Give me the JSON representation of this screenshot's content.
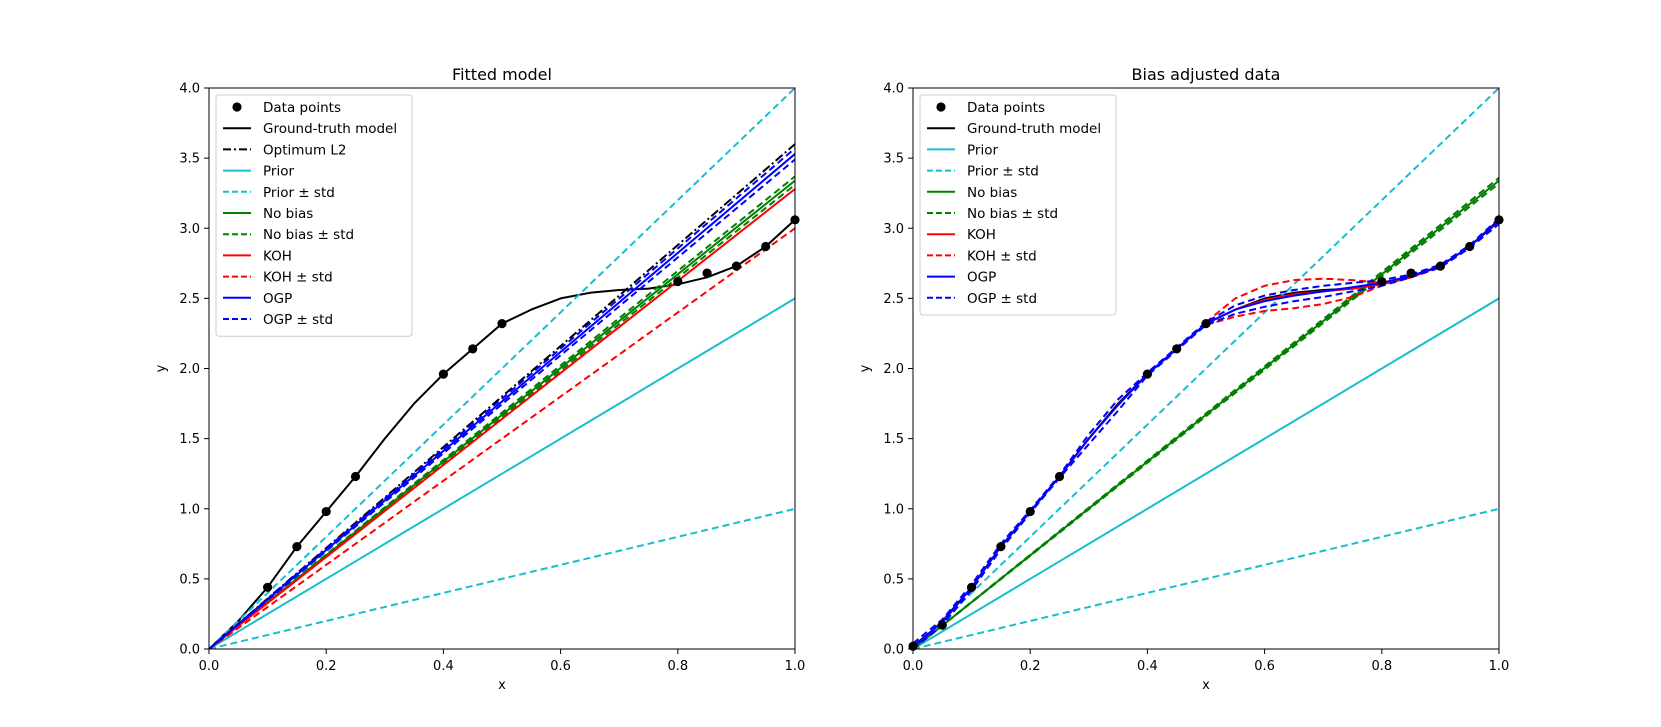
{
  "chart_data": [
    {
      "type": "line",
      "title": "Fitted model",
      "xlabel": "x",
      "ylabel": "y",
      "xlim": [
        0.0,
        1.0
      ],
      "ylim": [
        0.0,
        4.0
      ],
      "xticks": [
        "0.0",
        "0.2",
        "0.4",
        "0.6",
        "0.8",
        "1.0"
      ],
      "yticks": [
        "0.0",
        "0.5",
        "1.0",
        "1.5",
        "2.0",
        "2.5",
        "3.0",
        "3.5",
        "4.0"
      ],
      "legend_position": "top-left",
      "series": [
        {
          "name": "Data points",
          "kind": "scatter",
          "color": "#000000",
          "x": [
            0.1,
            0.15,
            0.2,
            0.25,
            0.4,
            0.45,
            0.5,
            0.8,
            0.85,
            0.9,
            0.95,
            1.0
          ],
          "y": [
            0.44,
            0.73,
            0.98,
            1.23,
            1.96,
            2.14,
            2.32,
            2.62,
            2.68,
            2.73,
            2.87,
            3.06
          ]
        },
        {
          "name": "Ground-truth model",
          "kind": "line",
          "dash": "solid",
          "color": "#000000",
          "x": [
            0,
            0.05,
            0.1,
            0.15,
            0.2,
            0.25,
            0.3,
            0.35,
            0.4,
            0.45,
            0.5,
            0.55,
            0.6,
            0.65,
            0.7,
            0.75,
            0.8,
            0.85,
            0.9,
            0.95,
            1.0
          ],
          "y": [
            0,
            0.2,
            0.44,
            0.73,
            0.98,
            1.23,
            1.5,
            1.75,
            1.96,
            2.14,
            2.32,
            2.42,
            2.5,
            2.54,
            2.56,
            2.57,
            2.6,
            2.65,
            2.73,
            2.87,
            3.06
          ]
        },
        {
          "name": "Optimum L2",
          "kind": "line",
          "dash": "dashdot",
          "color": "#000000",
          "x": [
            0,
            1
          ],
          "y": [
            0,
            3.6
          ]
        },
        {
          "name": "Prior",
          "kind": "line",
          "dash": "solid",
          "color": "#17becf",
          "x": [
            0,
            1
          ],
          "y": [
            0,
            2.5
          ]
        },
        {
          "name": "Prior ± std",
          "kind": "line",
          "dash": "dashed",
          "color": "#17becf",
          "x": [
            0,
            1
          ],
          "y": [
            0,
            4.0
          ]
        },
        {
          "name": "",
          "kind": "line",
          "dash": "dashed",
          "color": "#17becf",
          "x": [
            0,
            1
          ],
          "y": [
            0,
            1.0
          ]
        },
        {
          "name": "No bias",
          "kind": "line",
          "dash": "solid",
          "color": "#008000",
          "x": [
            0,
            1
          ],
          "y": [
            0,
            3.34
          ]
        },
        {
          "name": "No bias ± std",
          "kind": "line",
          "dash": "dashed",
          "color": "#008000",
          "x": [
            0,
            1
          ],
          "y": [
            0,
            3.37
          ]
        },
        {
          "name": "",
          "kind": "line",
          "dash": "dashed",
          "color": "#008000",
          "x": [
            0,
            1
          ],
          "y": [
            0,
            3.31
          ]
        },
        {
          "name": "KOH",
          "kind": "line",
          "dash": "solid",
          "color": "#ff0000",
          "x": [
            0,
            1
          ],
          "y": [
            0,
            3.28
          ]
        },
        {
          "name": "KOH ± std",
          "kind": "line",
          "dash": "dashed",
          "color": "#ff0000",
          "x": [
            0,
            1
          ],
          "y": [
            0,
            3.0
          ]
        },
        {
          "name": "OGP",
          "kind": "line",
          "dash": "solid",
          "color": "#0000ff",
          "x": [
            0,
            1
          ],
          "y": [
            0,
            3.53
          ]
        },
        {
          "name": "OGP ± std",
          "kind": "line",
          "dash": "dashed",
          "color": "#0000ff",
          "x": [
            0,
            1
          ],
          "y": [
            0,
            3.57
          ]
        },
        {
          "name": "",
          "kind": "line",
          "dash": "dashed",
          "color": "#0000ff",
          "x": [
            0,
            1
          ],
          "y": [
            0,
            3.49
          ]
        }
      ]
    },
    {
      "type": "line",
      "title": "Bias adjusted data",
      "xlabel": "x",
      "ylabel": "y",
      "xlim": [
        0.0,
        1.0
      ],
      "ylim": [
        0.0,
        4.0
      ],
      "xticks": [
        "0.0",
        "0.2",
        "0.4",
        "0.6",
        "0.8",
        "1.0"
      ],
      "yticks": [
        "0.0",
        "0.5",
        "1.0",
        "1.5",
        "2.0",
        "2.5",
        "3.0",
        "3.5",
        "4.0"
      ],
      "legend_position": "top-left",
      "series": [
        {
          "name": "Data points",
          "kind": "scatter",
          "color": "#000000",
          "x": [
            0.0,
            0.05,
            0.1,
            0.15,
            0.2,
            0.25,
            0.4,
            0.45,
            0.5,
            0.8,
            0.85,
            0.9,
            0.95,
            1.0
          ],
          "y": [
            0.02,
            0.17,
            0.44,
            0.73,
            0.98,
            1.23,
            1.96,
            2.14,
            2.32,
            2.62,
            2.68,
            2.73,
            2.87,
            3.06
          ]
        },
        {
          "name": "Ground-truth model",
          "kind": "line",
          "dash": "solid",
          "color": "#000000",
          "x": [
            0,
            0.05,
            0.1,
            0.15,
            0.2,
            0.25,
            0.3,
            0.35,
            0.4,
            0.45,
            0.5,
            0.55,
            0.6,
            0.65,
            0.7,
            0.75,
            0.8,
            0.85,
            0.9,
            0.95,
            1.0
          ],
          "y": [
            0,
            0.2,
            0.44,
            0.73,
            0.98,
            1.23,
            1.5,
            1.75,
            1.96,
            2.14,
            2.32,
            2.42,
            2.5,
            2.54,
            2.56,
            2.57,
            2.6,
            2.65,
            2.73,
            2.87,
            3.06
          ]
        },
        {
          "name": "Prior",
          "kind": "line",
          "dash": "solid",
          "color": "#17becf",
          "x": [
            0,
            1
          ],
          "y": [
            0,
            2.5
          ]
        },
        {
          "name": "Prior ± std",
          "kind": "line",
          "dash": "dashed",
          "color": "#17becf",
          "x": [
            0,
            1
          ],
          "y": [
            0,
            4.0
          ]
        },
        {
          "name": "",
          "kind": "line",
          "dash": "dashed",
          "color": "#17becf",
          "x": [
            0,
            1
          ],
          "y": [
            0,
            1.0
          ]
        },
        {
          "name": "No bias",
          "kind": "line",
          "dash": "solid",
          "color": "#008000",
          "x": [
            0,
            1
          ],
          "y": [
            0,
            3.34
          ]
        },
        {
          "name": "No bias ± std",
          "kind": "line",
          "dash": "dashed",
          "color": "#008000",
          "x": [
            0,
            1
          ],
          "y": [
            0,
            3.36
          ]
        },
        {
          "name": "",
          "kind": "line",
          "dash": "dashed",
          "color": "#008000",
          "x": [
            0,
            1
          ],
          "y": [
            0,
            3.32
          ]
        },
        {
          "name": "KOH",
          "kind": "line",
          "dash": "solid",
          "color": "#ff0000",
          "x": [
            0,
            0.05,
            0.1,
            0.15,
            0.2,
            0.25,
            0.3,
            0.35,
            0.4,
            0.45,
            0.5,
            0.55,
            0.6,
            0.65,
            0.7,
            0.75,
            0.8,
            0.85,
            0.9,
            0.95,
            1.0
          ],
          "y": [
            0.02,
            0.19,
            0.44,
            0.73,
            0.98,
            1.23,
            1.5,
            1.74,
            1.96,
            2.14,
            2.32,
            2.42,
            2.49,
            2.53,
            2.55,
            2.57,
            2.6,
            2.65,
            2.73,
            2.87,
            3.05
          ]
        },
        {
          "name": "KOH ± std",
          "kind": "line",
          "dash": "dashed",
          "color": "#ff0000",
          "x": [
            0.5,
            0.55,
            0.6,
            0.65,
            0.7,
            0.75,
            0.8
          ],
          "y": [
            2.33,
            2.5,
            2.59,
            2.63,
            2.64,
            2.63,
            2.61
          ]
        },
        {
          "name": "",
          "kind": "line",
          "dash": "dashed",
          "color": "#ff0000",
          "x": [
            0.5,
            0.55,
            0.6,
            0.65,
            0.7,
            0.75,
            0.8
          ],
          "y": [
            2.31,
            2.37,
            2.41,
            2.43,
            2.46,
            2.51,
            2.59
          ]
        },
        {
          "name": "OGP",
          "kind": "line",
          "dash": "solid",
          "color": "#0000ff",
          "x": [
            0,
            0.05,
            0.1,
            0.15,
            0.2,
            0.25,
            0.3,
            0.35,
            0.4,
            0.45,
            0.5,
            0.55,
            0.6,
            0.65,
            0.7,
            0.75,
            0.8,
            0.85,
            0.9,
            0.95,
            1.0
          ],
          "y": [
            0.02,
            0.19,
            0.44,
            0.73,
            0.98,
            1.23,
            1.5,
            1.74,
            1.96,
            2.14,
            2.32,
            2.42,
            2.48,
            2.52,
            2.55,
            2.58,
            2.61,
            2.66,
            2.73,
            2.87,
            3.05
          ]
        },
        {
          "name": "OGP ± std",
          "kind": "line",
          "dash": "dashed",
          "color": "#0000ff",
          "x": [
            0,
            0.05,
            0.1,
            0.15,
            0.2,
            0.25,
            0.3,
            0.35,
            0.4,
            0.45,
            0.5,
            0.55,
            0.6,
            0.65,
            0.7,
            0.75,
            0.8,
            0.85,
            0.9,
            0.95,
            1.0
          ],
          "y": [
            0.04,
            0.21,
            0.46,
            0.75,
            0.99,
            1.24,
            1.53,
            1.78,
            1.97,
            2.15,
            2.33,
            2.45,
            2.52,
            2.56,
            2.59,
            2.61,
            2.63,
            2.67,
            2.74,
            2.88,
            3.07
          ]
        },
        {
          "name": "",
          "kind": "line",
          "dash": "dashed",
          "color": "#0000ff",
          "x": [
            0,
            0.05,
            0.1,
            0.15,
            0.2,
            0.25,
            0.3,
            0.35,
            0.4,
            0.45,
            0.5,
            0.55,
            0.6,
            0.65,
            0.7,
            0.75,
            0.8,
            0.85,
            0.9,
            0.95,
            1.0
          ],
          "y": [
            0.0,
            0.17,
            0.42,
            0.71,
            0.97,
            1.22,
            1.46,
            1.7,
            1.95,
            2.13,
            2.31,
            2.39,
            2.44,
            2.48,
            2.51,
            2.55,
            2.59,
            2.65,
            2.72,
            2.86,
            3.03
          ]
        }
      ]
    }
  ]
}
